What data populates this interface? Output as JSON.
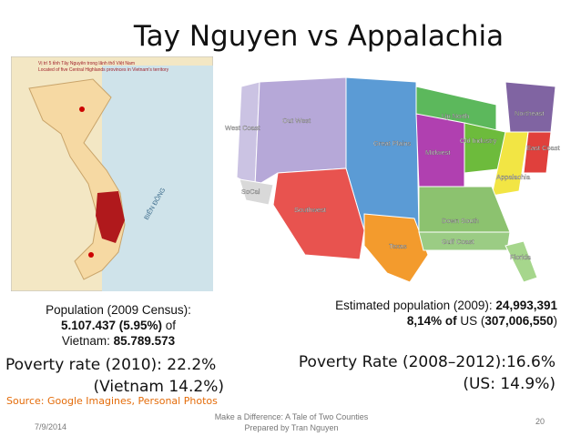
{
  "title": "Tay Nguyen vs Appalachia",
  "vietnam_map": {
    "heading": [
      "Vị trí 5 tỉnh Tây Nguyên trong lãnh thổ Việt Nam",
      "Located of five Central Highlands provinces in Vietnam's territory"
    ],
    "sea_label": "BIỂN ĐÔNG"
  },
  "us_map": {
    "regions": [
      "West Coast",
      "Out West",
      "Great Plains",
      "SoCal",
      "Southwest",
      "Texas",
      "Midwest",
      "Up North",
      "Old Industry",
      "Northeast",
      "East Coast",
      "Appalachia",
      "Down South",
      "Gulf Coast",
      "Florida"
    ]
  },
  "left": {
    "population": [
      [
        "Population (2009 Census):"
      ],
      [
        "5.107.437 (5.95%)",
        " of"
      ],
      [
        "Vietnam: ",
        "85.789.573"
      ]
    ],
    "poverty": [
      "Poverty rate (2010): 22.2%",
      "(Vietnam 14.2%)"
    ],
    "source": "Source: Google Imagines, Personal Photos"
  },
  "right": {
    "population": [
      [
        "Estimated population (2009): ",
        "24,993,391"
      ],
      [
        "8,14% of",
        " US (",
        "307,006,550",
        ")"
      ]
    ],
    "poverty": [
      "Poverty Rate (2008–2012):16.6%",
      "(US: 14.9%)"
    ]
  },
  "footer": {
    "date": "7/9/2014",
    "center": [
      "Make a Difference: A Tale of Two Counties",
      "Prepared by Tran Nguyen"
    ],
    "page": "20"
  }
}
